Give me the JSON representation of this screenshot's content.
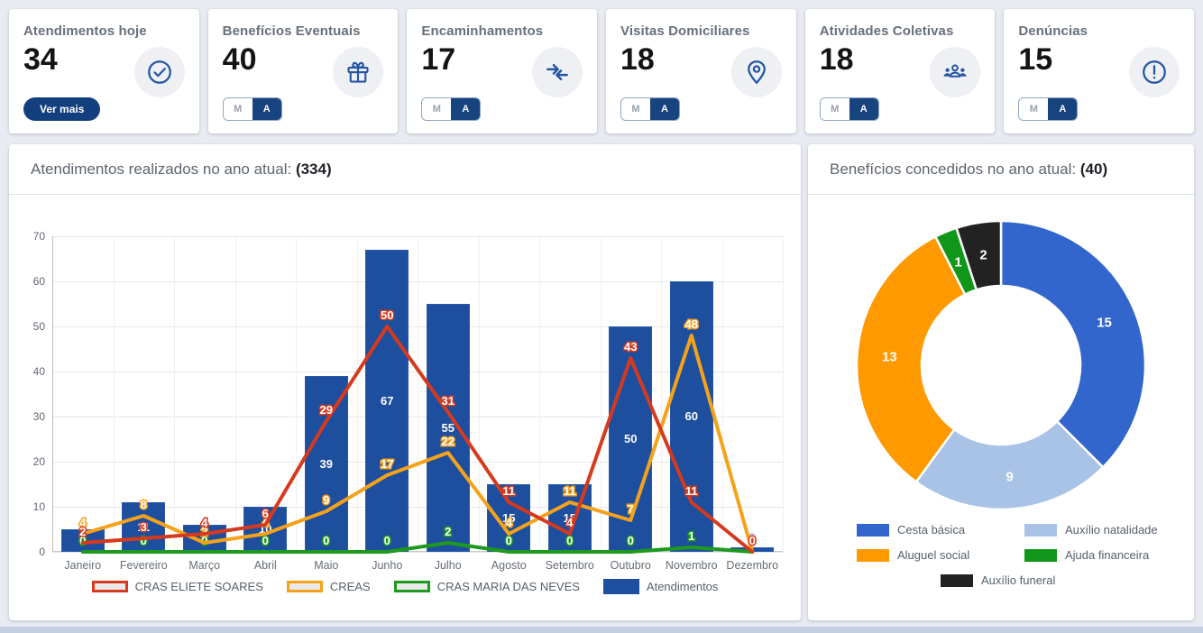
{
  "page": {
    "background": "#e8ebf1",
    "accent_primary": "#17437f",
    "accent_icon_blue": "#2456a4"
  },
  "cards": [
    {
      "title": "Atendimentos hoje",
      "value": "34",
      "icon": "check-circle-icon",
      "button_label": "Ver mais"
    },
    {
      "title": "Benefícios Eventuais",
      "value": "40",
      "icon": "gift-icon",
      "toggle": {
        "month": "M",
        "year": "A",
        "active": "A"
      }
    },
    {
      "title": "Encaminhamentos",
      "value": "17",
      "icon": "merge-arrows-icon",
      "toggle": {
        "month": "M",
        "year": "A",
        "active": "A"
      }
    },
    {
      "title": "Visitas Domiciliares",
      "value": "18",
      "icon": "home-pin-icon",
      "toggle": {
        "month": "M",
        "year": "A",
        "active": "A"
      }
    },
    {
      "title": "Atividades Coletivas",
      "value": "18",
      "icon": "people-group-icon",
      "toggle": {
        "month": "M",
        "year": "A",
        "active": "A"
      }
    },
    {
      "title": "Denúncias",
      "value": "15",
      "icon": "alert-circle-icon",
      "toggle": {
        "month": "M",
        "year": "A",
        "active": "A"
      }
    }
  ],
  "chart_data": [
    {
      "type": "bar",
      "title": "Atendimentos realizados no ano atual:",
      "total": "(334)",
      "categories": [
        "Janeiro",
        "Fevereiro",
        "Março",
        "Abril",
        "Maio",
        "Junho",
        "Julho",
        "Agosto",
        "Setembro",
        "Outubro",
        "Novembro",
        "Dezembro"
      ],
      "series": [
        {
          "name": "CRAS ELIETE SOARES",
          "type": "line",
          "color": "#d63a1e",
          "values": [
            2,
            3,
            4,
            6,
            29,
            50,
            31,
            11,
            4,
            43,
            11,
            0
          ]
        },
        {
          "name": "CREAS",
          "type": "line",
          "color": "#f5a21b",
          "values": [
            4,
            8,
            2,
            4,
            9,
            17,
            22,
            4,
            11,
            7,
            48,
            0
          ]
        },
        {
          "name": "CRAS MARIA DAS NEVES",
          "type": "line",
          "color": "#1d9a1d",
          "values": [
            0,
            0,
            0,
            0,
            0,
            0,
            2,
            0,
            0,
            0,
            1,
            0
          ]
        },
        {
          "name": "Atendimentos",
          "type": "bar",
          "color": "#1e4e9e",
          "values": [
            5,
            11,
            6,
            10,
            39,
            67,
            55,
            15,
            15,
            50,
            60,
            1
          ]
        }
      ],
      "ylim": [
        0,
        70
      ],
      "yticks": [
        0,
        10,
        20,
        30,
        40,
        50,
        60,
        70
      ],
      "grid": true,
      "legend_position": "bottom"
    },
    {
      "type": "pie",
      "subtype": "donut",
      "title": "Benefícios concedidos no ano atual:",
      "total": "(40)",
      "slices": [
        {
          "label": "Cesta básica",
          "value": 15,
          "color": "#3366cc"
        },
        {
          "label": "Auxílio natalidade",
          "value": 9,
          "color": "#a9c3e6"
        },
        {
          "label": "Aluguel social",
          "value": 13,
          "color": "#ff9900"
        },
        {
          "label": "Ajuda financeira",
          "value": 1,
          "color": "#109618"
        },
        {
          "label": "Auxílio funeral",
          "value": 2,
          "color": "#222222"
        }
      ],
      "legend_position": "bottom"
    }
  ]
}
